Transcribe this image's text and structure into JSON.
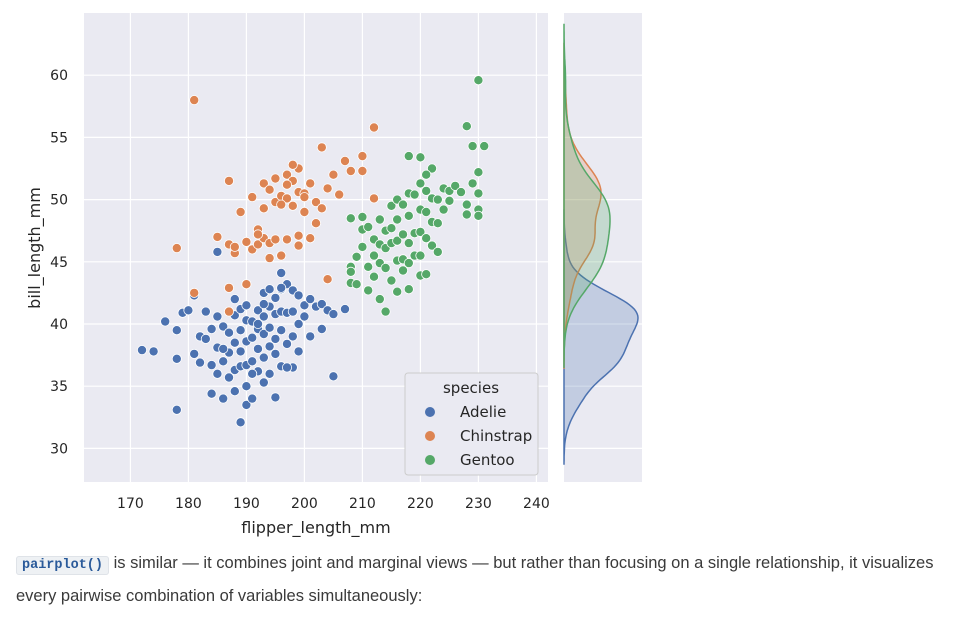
{
  "chart_data": {
    "type": "scatter",
    "xlabel": "flipper_length_mm",
    "ylabel": "bill_length_mm",
    "xlim": [
      162,
      242
    ],
    "ylim": [
      27.3,
      65
    ],
    "xticks": [
      170,
      180,
      190,
      200,
      210,
      220,
      230,
      240
    ],
    "yticks": [
      30,
      35,
      40,
      45,
      50,
      55,
      60
    ],
    "grid": true,
    "legend": {
      "title": "species",
      "placement": "lower-right"
    },
    "series": [
      {
        "name": "Adelie",
        "color": "#4c72b0",
        "points": [
          [
            172,
            37.9
          ],
          [
            174,
            37.8
          ],
          [
            176,
            40.2
          ],
          [
            178,
            39.5
          ],
          [
            178,
            37.2
          ],
          [
            178,
            33.1
          ],
          [
            179,
            40.9
          ],
          [
            180,
            41.1
          ],
          [
            181,
            42.3
          ],
          [
            181,
            37.6
          ],
          [
            182,
            39.0
          ],
          [
            182,
            36.9
          ],
          [
            183,
            41.0
          ],
          [
            183,
            38.8
          ],
          [
            184,
            39.6
          ],
          [
            184,
            36.7
          ],
          [
            184,
            34.4
          ],
          [
            185,
            40.6
          ],
          [
            185,
            38.1
          ],
          [
            185,
            36.0
          ],
          [
            186,
            39.8
          ],
          [
            186,
            37.0
          ],
          [
            186,
            34.0
          ],
          [
            187,
            41.0
          ],
          [
            187,
            39.3
          ],
          [
            187,
            37.7
          ],
          [
            187,
            35.7
          ],
          [
            188,
            40.7
          ],
          [
            188,
            38.5
          ],
          [
            188,
            36.3
          ],
          [
            188,
            34.6
          ],
          [
            189,
            41.2
          ],
          [
            189,
            39.5
          ],
          [
            189,
            37.8
          ],
          [
            189,
            36.6
          ],
          [
            189,
            32.1
          ],
          [
            190,
            41.5
          ],
          [
            190,
            40.3
          ],
          [
            190,
            38.6
          ],
          [
            190,
            36.7
          ],
          [
            190,
            35.0
          ],
          [
            190,
            33.5
          ],
          [
            191,
            40.2
          ],
          [
            191,
            38.9
          ],
          [
            191,
            37.0
          ],
          [
            191,
            34.0
          ],
          [
            192,
            41.1
          ],
          [
            192,
            39.6
          ],
          [
            192,
            38.0
          ],
          [
            192,
            36.2
          ],
          [
            193,
            42.5
          ],
          [
            193,
            40.6
          ],
          [
            193,
            39.2
          ],
          [
            193,
            37.3
          ],
          [
            193,
            35.3
          ],
          [
            194,
            41.4
          ],
          [
            194,
            39.7
          ],
          [
            194,
            38.2
          ],
          [
            194,
            36.0
          ],
          [
            195,
            42.1
          ],
          [
            195,
            40.8
          ],
          [
            195,
            38.8
          ],
          [
            195,
            37.6
          ],
          [
            195,
            34.1
          ],
          [
            196,
            42.8
          ],
          [
            196,
            41.0
          ],
          [
            196,
            39.5
          ],
          [
            196,
            36.6
          ],
          [
            197,
            43.2
          ],
          [
            197,
            40.9
          ],
          [
            197,
            38.4
          ],
          [
            198,
            42.7
          ],
          [
            198,
            41.0
          ],
          [
            198,
            39.0
          ],
          [
            198,
            36.5
          ],
          [
            199,
            42.3
          ],
          [
            199,
            40.0
          ],
          [
            199,
            37.8
          ],
          [
            200,
            41.5
          ],
          [
            200,
            40.6
          ],
          [
            201,
            42.0
          ],
          [
            201,
            39.0
          ],
          [
            202,
            41.4
          ],
          [
            203,
            41.6
          ],
          [
            203,
            39.6
          ],
          [
            204,
            41.1
          ],
          [
            205,
            40.8
          ],
          [
            205,
            35.8
          ],
          [
            207,
            41.2
          ],
          [
            185,
            45.8
          ],
          [
            190,
            43.2
          ],
          [
            193,
            41.6
          ],
          [
            196,
            44.1
          ],
          [
            196,
            42.9
          ],
          [
            192,
            40.0
          ],
          [
            188,
            42.0
          ],
          [
            194,
            42.8
          ],
          [
            197,
            36.5
          ],
          [
            186,
            38.0
          ],
          [
            191,
            36.0
          ]
        ]
      },
      {
        "name": "Chinstrap",
        "color": "#dd8452",
        "points": [
          [
            178,
            46.1
          ],
          [
            181,
            58.0
          ],
          [
            181,
            42.5
          ],
          [
            185,
            47.0
          ],
          [
            187,
            51.5
          ],
          [
            187,
            46.4
          ],
          [
            187,
            42.9
          ],
          [
            187,
            41.0
          ],
          [
            188,
            45.7
          ],
          [
            189,
            49.0
          ],
          [
            190,
            46.6
          ],
          [
            190,
            43.2
          ],
          [
            191,
            50.2
          ],
          [
            191,
            46.0
          ],
          [
            192,
            47.6
          ],
          [
            192,
            46.4
          ],
          [
            193,
            51.3
          ],
          [
            193,
            49.3
          ],
          [
            193,
            46.9
          ],
          [
            194,
            50.8
          ],
          [
            194,
            46.5
          ],
          [
            195,
            51.7
          ],
          [
            195,
            49.8
          ],
          [
            195,
            46.8
          ],
          [
            196,
            50.3
          ],
          [
            196,
            45.5
          ],
          [
            197,
            52.0
          ],
          [
            197,
            50.1
          ],
          [
            197,
            46.8
          ],
          [
            198,
            51.5
          ],
          [
            198,
            49.5
          ],
          [
            199,
            52.5
          ],
          [
            199,
            50.6
          ],
          [
            199,
            47.1
          ],
          [
            200,
            50.5
          ],
          [
            200,
            49.0
          ],
          [
            201,
            51.3
          ],
          [
            201,
            46.9
          ],
          [
            202,
            49.8
          ],
          [
            202,
            48.1
          ],
          [
            203,
            54.2
          ],
          [
            203,
            49.3
          ],
          [
            204,
            50.9
          ],
          [
            204,
            43.6
          ],
          [
            205,
            52.0
          ],
          [
            206,
            50.4
          ],
          [
            207,
            53.1
          ],
          [
            208,
            52.3
          ],
          [
            210,
            52.3
          ],
          [
            212,
            50.1
          ],
          [
            188,
            46.2
          ],
          [
            194,
            45.3
          ],
          [
            198,
            52.8
          ],
          [
            196,
            49.6
          ],
          [
            210,
            53.5
          ],
          [
            192,
            47.2
          ],
          [
            200,
            50.2
          ],
          [
            212,
            55.8
          ],
          [
            197,
            51.2
          ],
          [
            199,
            46.3
          ]
        ]
      },
      {
        "name": "Gentoo",
        "color": "#55a868",
        "points": [
          [
            208,
            48.5
          ],
          [
            208,
            44.6
          ],
          [
            208,
            44.2
          ],
          [
            208,
            43.3
          ],
          [
            209,
            45.4
          ],
          [
            209,
            43.2
          ],
          [
            210,
            48.6
          ],
          [
            210,
            47.6
          ],
          [
            210,
            46.2
          ],
          [
            211,
            47.8
          ],
          [
            211,
            44.6
          ],
          [
            211,
            42.7
          ],
          [
            212,
            46.8
          ],
          [
            212,
            45.5
          ],
          [
            212,
            43.8
          ],
          [
            213,
            48.4
          ],
          [
            213,
            46.4
          ],
          [
            213,
            44.9
          ],
          [
            213,
            42.0
          ],
          [
            214,
            47.5
          ],
          [
            214,
            46.1
          ],
          [
            214,
            44.5
          ],
          [
            215,
            49.5
          ],
          [
            215,
            47.7
          ],
          [
            215,
            46.5
          ],
          [
            215,
            43.5
          ],
          [
            216,
            50.0
          ],
          [
            216,
            48.4
          ],
          [
            216,
            46.7
          ],
          [
            216,
            45.1
          ],
          [
            216,
            42.6
          ],
          [
            217,
            49.6
          ],
          [
            217,
            47.2
          ],
          [
            217,
            45.2
          ],
          [
            217,
            44.3
          ],
          [
            218,
            50.5
          ],
          [
            218,
            48.7
          ],
          [
            218,
            46.5
          ],
          [
            218,
            44.9
          ],
          [
            218,
            42.8
          ],
          [
            219,
            50.4
          ],
          [
            219,
            47.3
          ],
          [
            219,
            45.5
          ],
          [
            220,
            51.3
          ],
          [
            220,
            49.2
          ],
          [
            220,
            47.4
          ],
          [
            220,
            45.5
          ],
          [
            220,
            43.9
          ],
          [
            221,
            50.7
          ],
          [
            221,
            49.0
          ],
          [
            221,
            46.9
          ],
          [
            221,
            44.0
          ],
          [
            222,
            52.5
          ],
          [
            222,
            50.1
          ],
          [
            222,
            48.2
          ],
          [
            222,
            46.3
          ],
          [
            223,
            50.0
          ],
          [
            223,
            48.1
          ],
          [
            224,
            50.9
          ],
          [
            224,
            49.2
          ],
          [
            225,
            50.7
          ],
          [
            225,
            49.9
          ],
          [
            226,
            51.1
          ],
          [
            227,
            50.6
          ],
          [
            228,
            49.6
          ],
          [
            228,
            48.8
          ],
          [
            229,
            51.3
          ],
          [
            229,
            54.3
          ],
          [
            230,
            52.2
          ],
          [
            230,
            50.5
          ],
          [
            230,
            49.2
          ],
          [
            230,
            48.7
          ],
          [
            230,
            59.6
          ],
          [
            228,
            55.9
          ],
          [
            231,
            54.3
          ],
          [
            220,
            53.4
          ],
          [
            218,
            53.5
          ],
          [
            214,
            41.0
          ],
          [
            221,
            52.0
          ],
          [
            223,
            45.8
          ]
        ]
      }
    ],
    "marginal": {
      "type": "kde",
      "axis": "y",
      "series": [
        "Adelie",
        "Chinstrap",
        "Gentoo"
      ]
    }
  },
  "caption": {
    "code": "pairplot()",
    "text": " is similar — it combines joint and marginal views — but rather than focusing on a single relationship, it visualizes every pairwise combination of variables simultaneously:"
  }
}
